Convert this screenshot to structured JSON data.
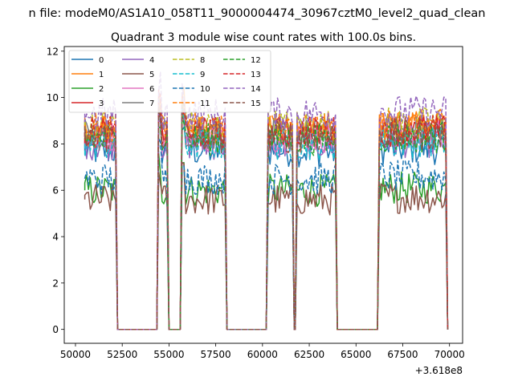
{
  "figure": {
    "suptitle": "n file: modeM0/AS1A10_058T11_9000004474_30967cztM0_level2_quad_clean",
    "title": "Quadrant 3 module wise count rates with 100.0s bins.",
    "offset_text": "+3.618e8"
  },
  "chart_data": {
    "type": "line",
    "title": "Quadrant 3 module wise count rates with 100.0s bins.",
    "xlabel": "",
    "ylabel": "",
    "x_offset": 361800000,
    "xlim": [
      49400,
      70700
    ],
    "ylim": [
      -0.6,
      12.2
    ],
    "xticks": [
      50000,
      52500,
      55000,
      57500,
      60000,
      62500,
      65000,
      67500,
      70000
    ],
    "xtick_labels": [
      "50000",
      "52500",
      "55000",
      "57500",
      "60000",
      "62500",
      "65000",
      "67500",
      "70000"
    ],
    "yticks": [
      0,
      2,
      4,
      6,
      8,
      10,
      12
    ],
    "ytick_labels": [
      "0",
      "2",
      "4",
      "6",
      "8",
      "10",
      "12"
    ],
    "grid": false,
    "legend": {
      "placement": "top-left",
      "columns": 4
    },
    "segments": [
      {
        "name": "seg1",
        "x": [
          50500,
          52150
        ],
        "drop_to": 52250
      },
      {
        "name": "seg2",
        "x": [
          54450,
          54900
        ],
        "drop_to": 55000
      },
      {
        "name": "seg3",
        "x": [
          55700,
          58000
        ],
        "drop_to": 58100
      },
      {
        "name": "seg4",
        "x": [
          60300,
          61600
        ],
        "drop_to": 61700
      },
      {
        "name": "seg5",
        "x": [
          61850,
          63900
        ],
        "drop_to": 64000
      },
      {
        "name": "seg6",
        "x": [
          66250,
          69800
        ],
        "drop_to": 69900
      }
    ],
    "series": [
      {
        "name": "0",
        "color": "#1f77b4",
        "dash": "solid",
        "level": 7.7
      },
      {
        "name": "1",
        "color": "#ff7f0e",
        "dash": "solid",
        "level": 8.6
      },
      {
        "name": "2",
        "color": "#2ca02c",
        "dash": "solid",
        "level": 6.0
      },
      {
        "name": "3",
        "color": "#d62728",
        "dash": "solid",
        "level": 8.5
      },
      {
        "name": "4",
        "color": "#9467bd",
        "dash": "solid",
        "level": 8.0
      },
      {
        "name": "5",
        "color": "#8c564b",
        "dash": "solid",
        "level": 5.6
      },
      {
        "name": "6",
        "color": "#e377c2",
        "dash": "solid",
        "level": 8.3
      },
      {
        "name": "7",
        "color": "#7f7f7f",
        "dash": "solid",
        "level": 8.4
      },
      {
        "name": "8",
        "color": "#bcbd22",
        "dash": "dashed",
        "level": 8.8
      },
      {
        "name": "9",
        "color": "#17becf",
        "dash": "dashed",
        "level": 8.0
      },
      {
        "name": "10",
        "color": "#1f77b4",
        "dash": "dashed",
        "level": 6.5
      },
      {
        "name": "11",
        "color": "#ff7f0e",
        "dash": "dashed",
        "level": 8.7
      },
      {
        "name": "12",
        "color": "#2ca02c",
        "dash": "dashed",
        "level": 8.2
      },
      {
        "name": "13",
        "color": "#d62728",
        "dash": "dashed",
        "level": 8.5
      },
      {
        "name": "14",
        "color": "#9467bd",
        "dash": "dashed",
        "level": 9.3
      },
      {
        "name": "15",
        "color": "#8c564b",
        "dash": "dashed",
        "level": 8.3
      }
    ]
  }
}
